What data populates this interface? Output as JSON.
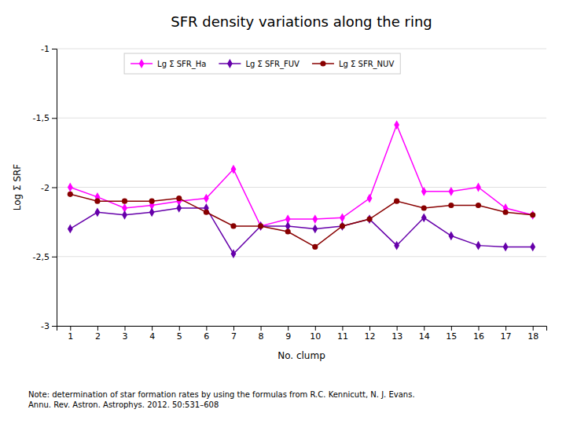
{
  "chart_data": {
    "type": "line",
    "title": "SFR density variations along the ring",
    "xlabel": "No.  clump",
    "ylabel": "Log Σ SRF",
    "note": "Note: determination of star formation rates by using the formulas from R.C. Kennicutt, N. J. Evans.\nAnnu. Rev. Astron. Astrophys. 2012. 50:531–608",
    "x": [
      1,
      2,
      3,
      4,
      5,
      6,
      7,
      8,
      9,
      10,
      11,
      12,
      13,
      14,
      15,
      16,
      17,
      18
    ],
    "series": [
      {
        "name": "Lg Σ SFR_Ha",
        "color": "#ff00ff",
        "marker": "diamond",
        "values": [
          -2.0,
          -2.07,
          -2.15,
          -2.13,
          -2.1,
          -2.08,
          -1.87,
          -2.28,
          -2.23,
          -2.23,
          -2.22,
          -2.08,
          -1.55,
          -2.03,
          -2.03,
          -2.0,
          -2.15,
          -2.2
        ]
      },
      {
        "name": "Lg Σ SFR_FUV",
        "color": "#6600aa",
        "marker": "diamond",
        "values": [
          -2.3,
          -2.18,
          -2.2,
          -2.18,
          -2.15,
          -2.15,
          -2.48,
          -2.28,
          -2.28,
          -2.3,
          -2.28,
          -2.23,
          -2.42,
          -2.22,
          -2.35,
          -2.42,
          -2.43,
          -2.43
        ]
      },
      {
        "name": "Lg Σ SFR_NUV",
        "color": "#880000",
        "marker": "circle",
        "values": [
          -2.05,
          -2.1,
          -2.1,
          -2.1,
          -2.08,
          -2.18,
          -2.28,
          -2.28,
          -2.32,
          -2.43,
          -2.28,
          -2.23,
          -2.1,
          -2.15,
          -2.13,
          -2.13,
          -2.18,
          -2.2
        ]
      }
    ],
    "xlim": [
      0.5,
      18.5
    ],
    "xticks": [
      1,
      2,
      3,
      4,
      5,
      6,
      7,
      8,
      9,
      10,
      11,
      12,
      13,
      14,
      15,
      16,
      17,
      18
    ],
    "ylim": [
      -3,
      -1
    ],
    "yticks": [
      -3,
      {
        "value": -2.5,
        "label": "-2,5"
      },
      -2,
      {
        "value": -1.5,
        "label": "-1,5"
      },
      -1
    ],
    "grid": "y",
    "legend": "top"
  }
}
